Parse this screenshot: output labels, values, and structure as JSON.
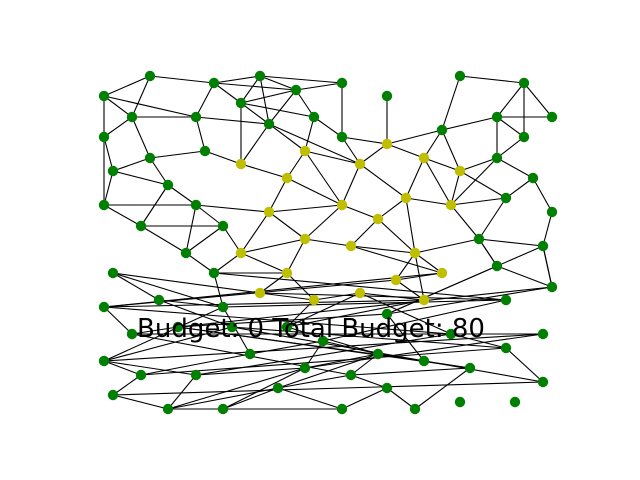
{
  "game": {
    "budget_label": "Budget: 0 Total Budget: 80",
    "budget": 0,
    "total_budget": 80
  },
  "colors": {
    "background": "#ffffff",
    "edge": "#000000",
    "node_default": "#008000",
    "node_highlighted": "#bfbf00"
  },
  "graph": {
    "node_count": 104,
    "highlighted_count": 23
  }
}
